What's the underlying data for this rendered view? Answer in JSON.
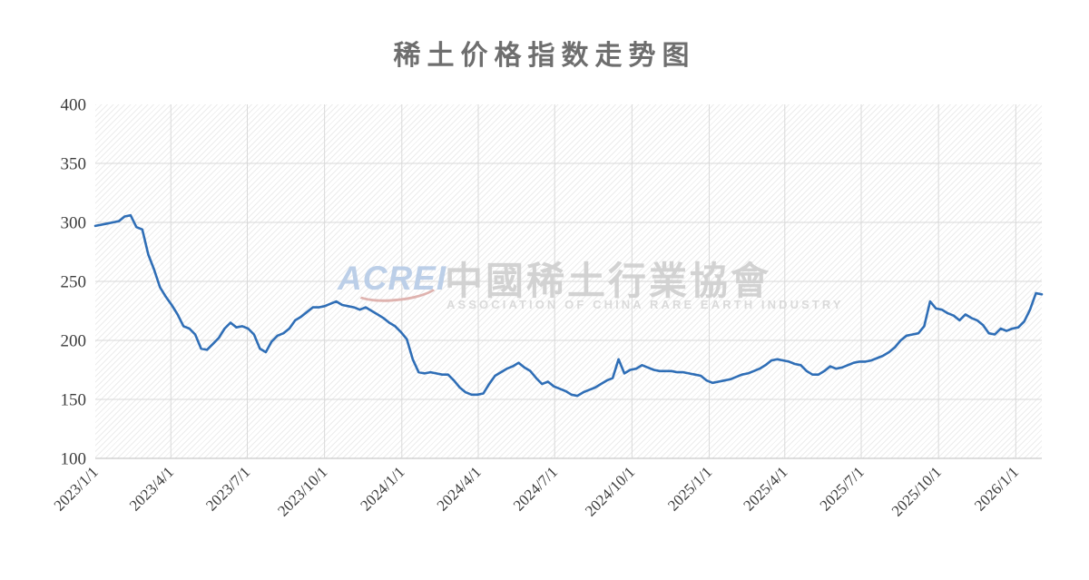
{
  "title": "稀土价格指数走势图",
  "watermark": {
    "acronym": "ACREI",
    "cn": "中國稀土行業協會",
    "en": "ASSOCIATION OF CHINA RARE EARTH INDUSTRY"
  },
  "colors": {
    "line": "#2f6eb6",
    "grid": "#d9d9d9",
    "axis_text": "#3d3d3d",
    "title_text": "#6e6e6e",
    "hatch": "#ececec",
    "watermark_blue": "#bccfe8",
    "watermark_gray": "#d2d2d2",
    "watermark_red": "#dfb3af"
  },
  "chart_data": {
    "type": "line",
    "title": "稀土价格指数走势图",
    "xlabel": "",
    "ylabel": "",
    "grid": true,
    "legend": "none",
    "background_pattern": "diagonal-hatch",
    "y_axis": {
      "min": 100,
      "max": 400,
      "step": 50,
      "ticks": [
        100,
        150,
        200,
        250,
        300,
        350,
        400
      ]
    },
    "x_tick_labels": [
      "2023/1/1",
      "2023/4/1",
      "2023/7/1",
      "2023/10/1",
      "2024/1/1",
      "2024/4/1",
      "2024/7/1",
      "2024/10/1",
      "2025/1/1",
      "2025/4/1",
      "2025/7/1",
      "2025/10/1",
      "2026/1/1"
    ],
    "series": [
      {
        "name": "稀土价格指数",
        "color": "#2f6eb6",
        "start_date": "2023/1/1",
        "step_days": 7,
        "values": [
          297,
          298,
          299,
          300,
          301,
          305,
          306,
          296,
          294,
          273,
          260,
          245,
          237,
          230,
          222,
          212,
          210,
          205,
          193,
          192,
          197,
          202,
          210,
          215,
          211,
          212,
          210,
          205,
          193,
          190,
          199,
          204,
          206,
          210,
          217,
          220,
          224,
          228,
          228,
          229,
          231,
          233,
          230,
          229,
          228,
          226,
          228,
          225,
          222,
          219,
          215,
          212,
          207,
          201,
          184,
          173,
          172,
          173,
          172,
          171,
          171,
          166,
          160,
          156,
          154,
          154,
          155,
          163,
          170,
          173,
          176,
          178,
          181,
          177,
          174,
          168,
          163,
          165,
          161,
          159,
          157,
          154,
          153,
          156,
          158,
          160,
          163,
          166,
          168,
          184,
          172,
          175,
          176,
          179,
          177,
          175,
          174,
          174,
          174,
          173,
          173,
          172,
          171,
          170,
          166,
          164,
          165,
          166,
          167,
          169,
          171,
          172,
          174,
          176,
          179,
          183,
          184,
          183,
          182,
          180,
          179,
          174,
          171,
          171,
          174,
          178,
          176,
          177,
          179,
          181,
          182,
          182,
          183,
          185,
          187,
          190,
          194,
          200,
          204,
          205,
          206,
          212,
          233,
          227,
          226,
          223,
          221,
          217,
          222,
          219,
          217,
          213,
          206,
          205,
          210,
          208,
          210,
          211,
          216,
          226,
          240,
          239
        ]
      }
    ]
  }
}
